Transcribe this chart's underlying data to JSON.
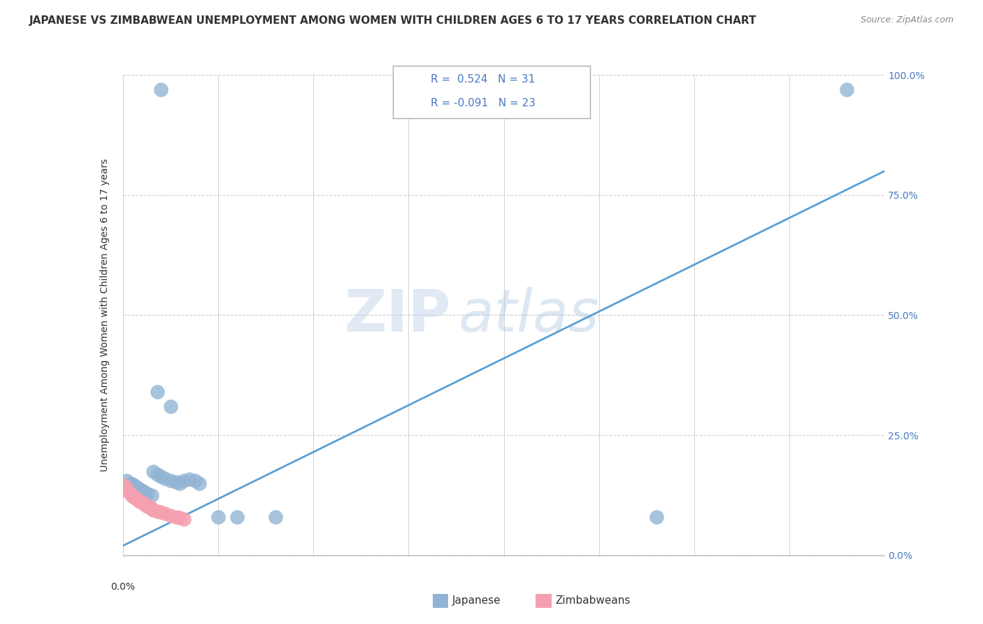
{
  "title": "JAPANESE VS ZIMBABWEAN UNEMPLOYMENT AMONG WOMEN WITH CHILDREN AGES 6 TO 17 YEARS CORRELATION CHART",
  "source": "Source: ZipAtlas.com",
  "ylabel": "Unemployment Among Women with Children Ages 6 to 17 years",
  "xlim": [
    0.0,
    0.4
  ],
  "ylim": [
    0.0,
    1.0
  ],
  "ytick_labels": [
    "0.0%",
    "25.0%",
    "50.0%",
    "75.0%",
    "100.0%"
  ],
  "ytick_values": [
    0.0,
    0.25,
    0.5,
    0.75,
    1.0
  ],
  "watermark_zip": "ZIP",
  "watermark_atlas": "atlas",
  "color_japanese": "#92b4d4",
  "color_zimbabwean": "#f4a0b0",
  "color_line_japanese": "#5a9fd4",
  "color_line_zimbabwean": "#c87090",
  "japanese_x": [
    0.002,
    0.004,
    0.005,
    0.006,
    0.007,
    0.008,
    0.009,
    0.01,
    0.011,
    0.012,
    0.013,
    0.015,
    0.016,
    0.018,
    0.02,
    0.022,
    0.025,
    0.028,
    0.03,
    0.032,
    0.035,
    0.038,
    0.04,
    0.05,
    0.06,
    0.08,
    0.018,
    0.025,
    0.28,
    0.02,
    0.38
  ],
  "japanese_y": [
    0.155,
    0.15,
    0.148,
    0.145,
    0.143,
    0.14,
    0.137,
    0.135,
    0.132,
    0.13,
    0.128,
    0.125,
    0.175,
    0.168,
    0.165,
    0.16,
    0.155,
    0.152,
    0.15,
    0.155,
    0.158,
    0.155,
    0.15,
    0.08,
    0.08,
    0.08,
    0.34,
    0.31,
    0.08,
    0.97,
    0.97
  ],
  "zimbabwean_x": [
    0.001,
    0.002,
    0.003,
    0.004,
    0.005,
    0.006,
    0.007,
    0.008,
    0.009,
    0.01,
    0.011,
    0.012,
    0.013,
    0.014,
    0.015,
    0.016,
    0.018,
    0.02,
    0.022,
    0.025,
    0.028,
    0.03,
    0.032
  ],
  "zimbabwean_y": [
    0.145,
    0.138,
    0.132,
    0.128,
    0.124,
    0.12,
    0.118,
    0.115,
    0.112,
    0.11,
    0.108,
    0.105,
    0.102,
    0.1,
    0.098,
    0.095,
    0.092,
    0.09,
    0.087,
    0.083,
    0.08,
    0.078,
    0.075
  ],
  "background_color": "#ffffff",
  "grid_color": "#cccccc",
  "title_fontsize": 11,
  "axis_fontsize": 10,
  "legend_fontsize": 11
}
